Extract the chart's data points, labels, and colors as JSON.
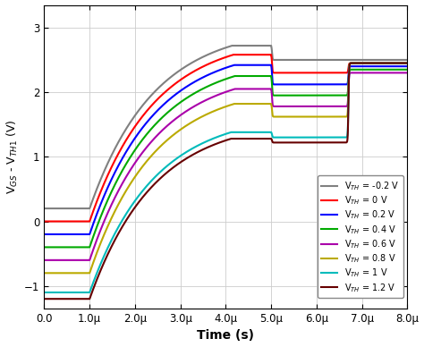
{
  "title": "",
  "xlabel": "Time (s)",
  "ylabel": "V$_{GS}$ - V$_{TH1}$ (V)",
  "xlim": [
    0,
    8e-06
  ],
  "ylim": [
    -1.35,
    3.35
  ],
  "xticks": [
    0,
    1e-06,
    2e-06,
    3e-06,
    4e-06,
    5e-06,
    6e-06,
    7e-06,
    8e-06
  ],
  "xtick_labels": [
    "0.0",
    "1.0μ",
    "2.0μ",
    "3.0μ",
    "4.0μ",
    "5.0μ",
    "6.0μ",
    "7.0μ",
    "8.0μ"
  ],
  "yticks": [
    -1,
    0,
    1,
    2,
    3
  ],
  "curves": [
    {
      "label": "V$_{TH}$ = -0.2 V",
      "color": "#808080",
      "v_init": 0.2,
      "v_peak": 2.72,
      "v_dip": 2.5,
      "v_final": 2.5,
      "tau": 1.4e-06
    },
    {
      "label": "V$_{TH}$ = 0 V",
      "color": "#ff0000",
      "v_init": 0.0,
      "v_peak": 2.58,
      "v_dip": 2.3,
      "v_final": 2.45,
      "tau": 1.4e-06
    },
    {
      "label": "V$_{TH}$ = 0.2 V",
      "color": "#0000ff",
      "v_init": -0.2,
      "v_peak": 2.42,
      "v_dip": 2.12,
      "v_final": 2.4,
      "tau": 1.4e-06
    },
    {
      "label": "V$_{TH}$ = 0.4 V",
      "color": "#00aa00",
      "v_init": -0.4,
      "v_peak": 2.25,
      "v_dip": 1.95,
      "v_final": 2.35,
      "tau": 1.4e-06
    },
    {
      "label": "V$_{TH}$ = 0.6 V",
      "color": "#aa00aa",
      "v_init": -0.6,
      "v_peak": 2.05,
      "v_dip": 1.78,
      "v_final": 2.3,
      "tau": 1.4e-06
    },
    {
      "label": "V$_{TH}$ = 0.8 V",
      "color": "#bbaa00",
      "v_init": -0.8,
      "v_peak": 1.82,
      "v_dip": 1.62,
      "v_final": 2.45,
      "tau": 1.4e-06
    },
    {
      "label": "V$_{TH}$ = 1 V",
      "color": "#00bbbb",
      "v_init": -1.1,
      "v_peak": 1.38,
      "v_dip": 1.3,
      "v_final": 2.45,
      "tau": 1.4e-06
    },
    {
      "label": "V$_{TH}$ = 1.2 V",
      "color": "#660000",
      "v_init": -1.2,
      "v_peak": 1.28,
      "v_dip": 1.22,
      "v_final": 2.45,
      "tau": 1.4e-06
    }
  ],
  "background_color": "#ffffff",
  "grid_color": "#cccccc",
  "linewidth": 1.5
}
